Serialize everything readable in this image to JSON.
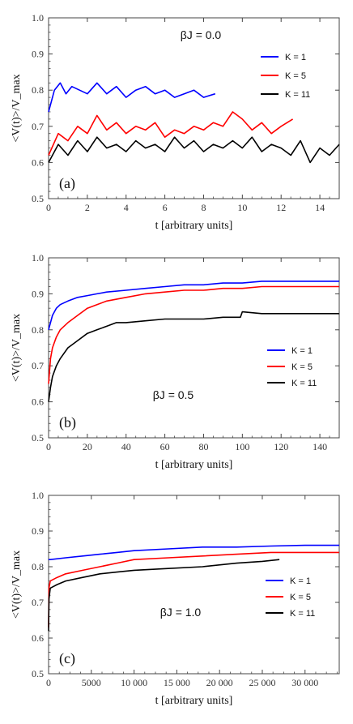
{
  "chart_data": [
    {
      "type": "line",
      "panel_label": "(a)",
      "annotation": "βJ = 0.0",
      "xlabel": "t [arbitrary units]",
      "ylabel": "<V(t)>/V_max",
      "xlim": [
        0,
        15
      ],
      "ylim": [
        0.5,
        1.0
      ],
      "xticks": [
        0,
        2,
        4,
        6,
        8,
        10,
        12,
        14
      ],
      "xtick_labels": [
        "0",
        "2",
        "4",
        "6",
        "8",
        "10",
        "12",
        "14"
      ],
      "yticks": [
        0.5,
        0.6,
        0.7,
        0.8,
        0.9,
        1.0
      ],
      "ytick_labels": [
        "0.5",
        "0.6",
        "0.7",
        "0.8",
        "0.9",
        "1.0"
      ],
      "legend_position": "top-right",
      "series": [
        {
          "name": "K = 1",
          "color": "#0000ff",
          "x": [
            0,
            0.3,
            0.6,
            0.9,
            1.2,
            1.6,
            2.0,
            2.5,
            3.0,
            3.5,
            4.0,
            4.5,
            5.0,
            5.5,
            6.0,
            6.5,
            7.0,
            7.5,
            8.0,
            8.6
          ],
          "y": [
            0.74,
            0.8,
            0.82,
            0.79,
            0.81,
            0.8,
            0.79,
            0.82,
            0.79,
            0.81,
            0.78,
            0.8,
            0.81,
            0.79,
            0.8,
            0.78,
            0.79,
            0.8,
            0.78,
            0.79
          ]
        },
        {
          "name": "K = 5",
          "color": "#ff0000",
          "x": [
            0,
            0.5,
            1.0,
            1.5,
            2.0,
            2.5,
            3.0,
            3.5,
            4.0,
            4.5,
            5.0,
            5.5,
            6.0,
            6.5,
            7.0,
            7.5,
            8.0,
            8.5,
            9.0,
            9.5,
            10.0,
            10.5,
            11.0,
            11.5,
            12.0,
            12.6
          ],
          "y": [
            0.62,
            0.68,
            0.66,
            0.7,
            0.68,
            0.73,
            0.69,
            0.71,
            0.68,
            0.7,
            0.69,
            0.71,
            0.67,
            0.69,
            0.68,
            0.7,
            0.69,
            0.71,
            0.7,
            0.74,
            0.72,
            0.69,
            0.71,
            0.68,
            0.7,
            0.72
          ]
        },
        {
          "name": "K = 11",
          "color": "#000000",
          "x": [
            0,
            0.5,
            1.0,
            1.5,
            2.0,
            2.5,
            3.0,
            3.5,
            4.0,
            4.5,
            5.0,
            5.5,
            6.0,
            6.5,
            7.0,
            7.5,
            8.0,
            8.5,
            9.0,
            9.5,
            10.0,
            10.5,
            11.0,
            11.5,
            12.0,
            12.5,
            13.0,
            13.5,
            14.0,
            14.5,
            15.0
          ],
          "y": [
            0.6,
            0.65,
            0.62,
            0.66,
            0.63,
            0.67,
            0.64,
            0.65,
            0.63,
            0.66,
            0.64,
            0.65,
            0.63,
            0.67,
            0.64,
            0.66,
            0.63,
            0.65,
            0.64,
            0.66,
            0.64,
            0.67,
            0.63,
            0.65,
            0.64,
            0.62,
            0.66,
            0.6,
            0.64,
            0.62,
            0.65
          ]
        }
      ]
    },
    {
      "type": "line",
      "panel_label": "(b)",
      "annotation": "βJ = 0.5",
      "xlabel": "t [arbitrary units]",
      "ylabel": "<V(t)>/V_max",
      "xlim": [
        0,
        150
      ],
      "ylim": [
        0.5,
        1.0
      ],
      "xticks": [
        0,
        20,
        40,
        60,
        80,
        100,
        120,
        140
      ],
      "xtick_labels": [
        "0",
        "20",
        "40",
        "60",
        "80",
        "100",
        "120",
        "140"
      ],
      "yticks": [
        0.5,
        0.6,
        0.7,
        0.8,
        0.9,
        1.0
      ],
      "ytick_labels": [
        "0.5",
        "0.6",
        "0.7",
        "0.8",
        "0.9",
        "1.0"
      ],
      "legend_position": "middle-right",
      "series": [
        {
          "name": "K = 1",
          "color": "#0000ff",
          "x": [
            0,
            1,
            2,
            4,
            6,
            10,
            15,
            20,
            25,
            30,
            40,
            50,
            60,
            70,
            80,
            90,
            100,
            110,
            120,
            130,
            140,
            150
          ],
          "y": [
            0.8,
            0.82,
            0.84,
            0.86,
            0.87,
            0.88,
            0.89,
            0.895,
            0.9,
            0.905,
            0.91,
            0.915,
            0.92,
            0.925,
            0.925,
            0.93,
            0.93,
            0.935,
            0.935,
            0.935,
            0.935,
            0.935
          ]
        },
        {
          "name": "K = 5",
          "color": "#ff0000",
          "x": [
            0,
            1,
            2,
            4,
            6,
            10,
            15,
            20,
            25,
            30,
            40,
            50,
            60,
            70,
            80,
            90,
            100,
            110,
            120,
            130,
            140,
            150
          ],
          "y": [
            0.65,
            0.72,
            0.75,
            0.78,
            0.8,
            0.82,
            0.84,
            0.86,
            0.87,
            0.88,
            0.89,
            0.9,
            0.905,
            0.91,
            0.91,
            0.915,
            0.915,
            0.92,
            0.92,
            0.92,
            0.92,
            0.92
          ]
        },
        {
          "name": "K = 11",
          "color": "#000000",
          "x": [
            0,
            1,
            2,
            4,
            6,
            10,
            15,
            20,
            25,
            30,
            35,
            40,
            50,
            60,
            70,
            80,
            90,
            99,
            100,
            110,
            120,
            130,
            140,
            150
          ],
          "y": [
            0.6,
            0.64,
            0.67,
            0.7,
            0.72,
            0.75,
            0.77,
            0.79,
            0.8,
            0.81,
            0.82,
            0.82,
            0.825,
            0.83,
            0.83,
            0.83,
            0.835,
            0.835,
            0.85,
            0.845,
            0.845,
            0.845,
            0.845,
            0.845
          ]
        }
      ]
    },
    {
      "type": "line",
      "panel_label": "(c)",
      "annotation": "βJ = 1.0",
      "xlabel": "t [arbitrary units]",
      "ylabel": "<V(t)>/V_max",
      "xlim": [
        0,
        34000
      ],
      "ylim": [
        0.5,
        1.0
      ],
      "xticks": [
        0,
        5000,
        10000,
        15000,
        20000,
        25000,
        30000
      ],
      "xtick_labels": [
        "0",
        "5000",
        "10 000",
        "15 000",
        "20 000",
        "25 000",
        "30 000"
      ],
      "yticks": [
        0.5,
        0.6,
        0.7,
        0.8,
        0.9,
        1.0
      ],
      "ytick_labels": [
        "0.5",
        "0.6",
        "0.7",
        "0.8",
        "0.9",
        "1.0"
      ],
      "legend_position": "middle-right",
      "series": [
        {
          "name": "K = 1",
          "color": "#0000ff",
          "x": [
            0,
            200,
            2000,
            4000,
            6000,
            8000,
            10000,
            14000,
            18000,
            22000,
            26000,
            30000,
            34000
          ],
          "y": [
            0.82,
            0.82,
            0.825,
            0.83,
            0.835,
            0.84,
            0.845,
            0.85,
            0.855,
            0.855,
            0.858,
            0.86,
            0.86
          ]
        },
        {
          "name": "K = 5",
          "color": "#ff0000",
          "x": [
            0,
            50,
            200,
            1000,
            2000,
            4000,
            6000,
            8000,
            10000,
            14000,
            18000,
            22000,
            26000,
            30000,
            34000
          ],
          "y": [
            0.63,
            0.74,
            0.76,
            0.77,
            0.78,
            0.79,
            0.8,
            0.81,
            0.82,
            0.825,
            0.83,
            0.835,
            0.84,
            0.84,
            0.84
          ]
        },
        {
          "name": "K = 11",
          "color": "#000000",
          "x": [
            0,
            50,
            200,
            1000,
            2000,
            4000,
            6000,
            8000,
            10000,
            14000,
            18000,
            22000,
            25000,
            27000
          ],
          "y": [
            0.62,
            0.71,
            0.74,
            0.75,
            0.76,
            0.77,
            0.78,
            0.785,
            0.79,
            0.795,
            0.8,
            0.81,
            0.815,
            0.82
          ]
        }
      ]
    }
  ]
}
